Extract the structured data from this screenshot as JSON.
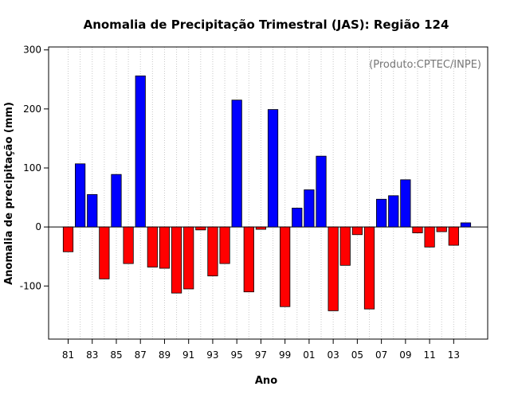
{
  "chart_data": {
    "type": "bar",
    "title": "Anomalia de Precipitação Trimestral (JAS): Região 124",
    "xlabel": "Ano",
    "ylabel": "Anomalia de precipitação (mm)",
    "annotation": "(Produto:CPTEC/INPE)",
    "ylim": [
      -190,
      305
    ],
    "yticks": [
      -100,
      0,
      100,
      200,
      300
    ],
    "grid": "vertical-dotted",
    "categories": [
      "81",
      "82",
      "83",
      "84",
      "85",
      "86",
      "87",
      "88",
      "89",
      "90",
      "91",
      "92",
      "93",
      "94",
      "95",
      "96",
      "97",
      "98",
      "99",
      "00",
      "01",
      "02",
      "03",
      "04",
      "05",
      "06",
      "07",
      "08",
      "09",
      "10",
      "11",
      "12",
      "13",
      "14"
    ],
    "xtick_labels": [
      "81",
      "83",
      "85",
      "87",
      "89",
      "91",
      "93",
      "95",
      "97",
      "99",
      "01",
      "03",
      "05",
      "07",
      "09",
      "11",
      "13"
    ],
    "values": [
      -42,
      107,
      55,
      -88,
      89,
      -62,
      256,
      -68,
      -70,
      -112,
      -105,
      -5,
      -83,
      -62,
      215,
      -110,
      -4,
      199,
      -135,
      32,
      63,
      120,
      -142,
      -65,
      -13,
      -139,
      47,
      53,
      80,
      -10,
      -34,
      -8,
      -31,
      7
    ],
    "positive_color": "#0000ff",
    "negative_color": "#ff0000"
  }
}
